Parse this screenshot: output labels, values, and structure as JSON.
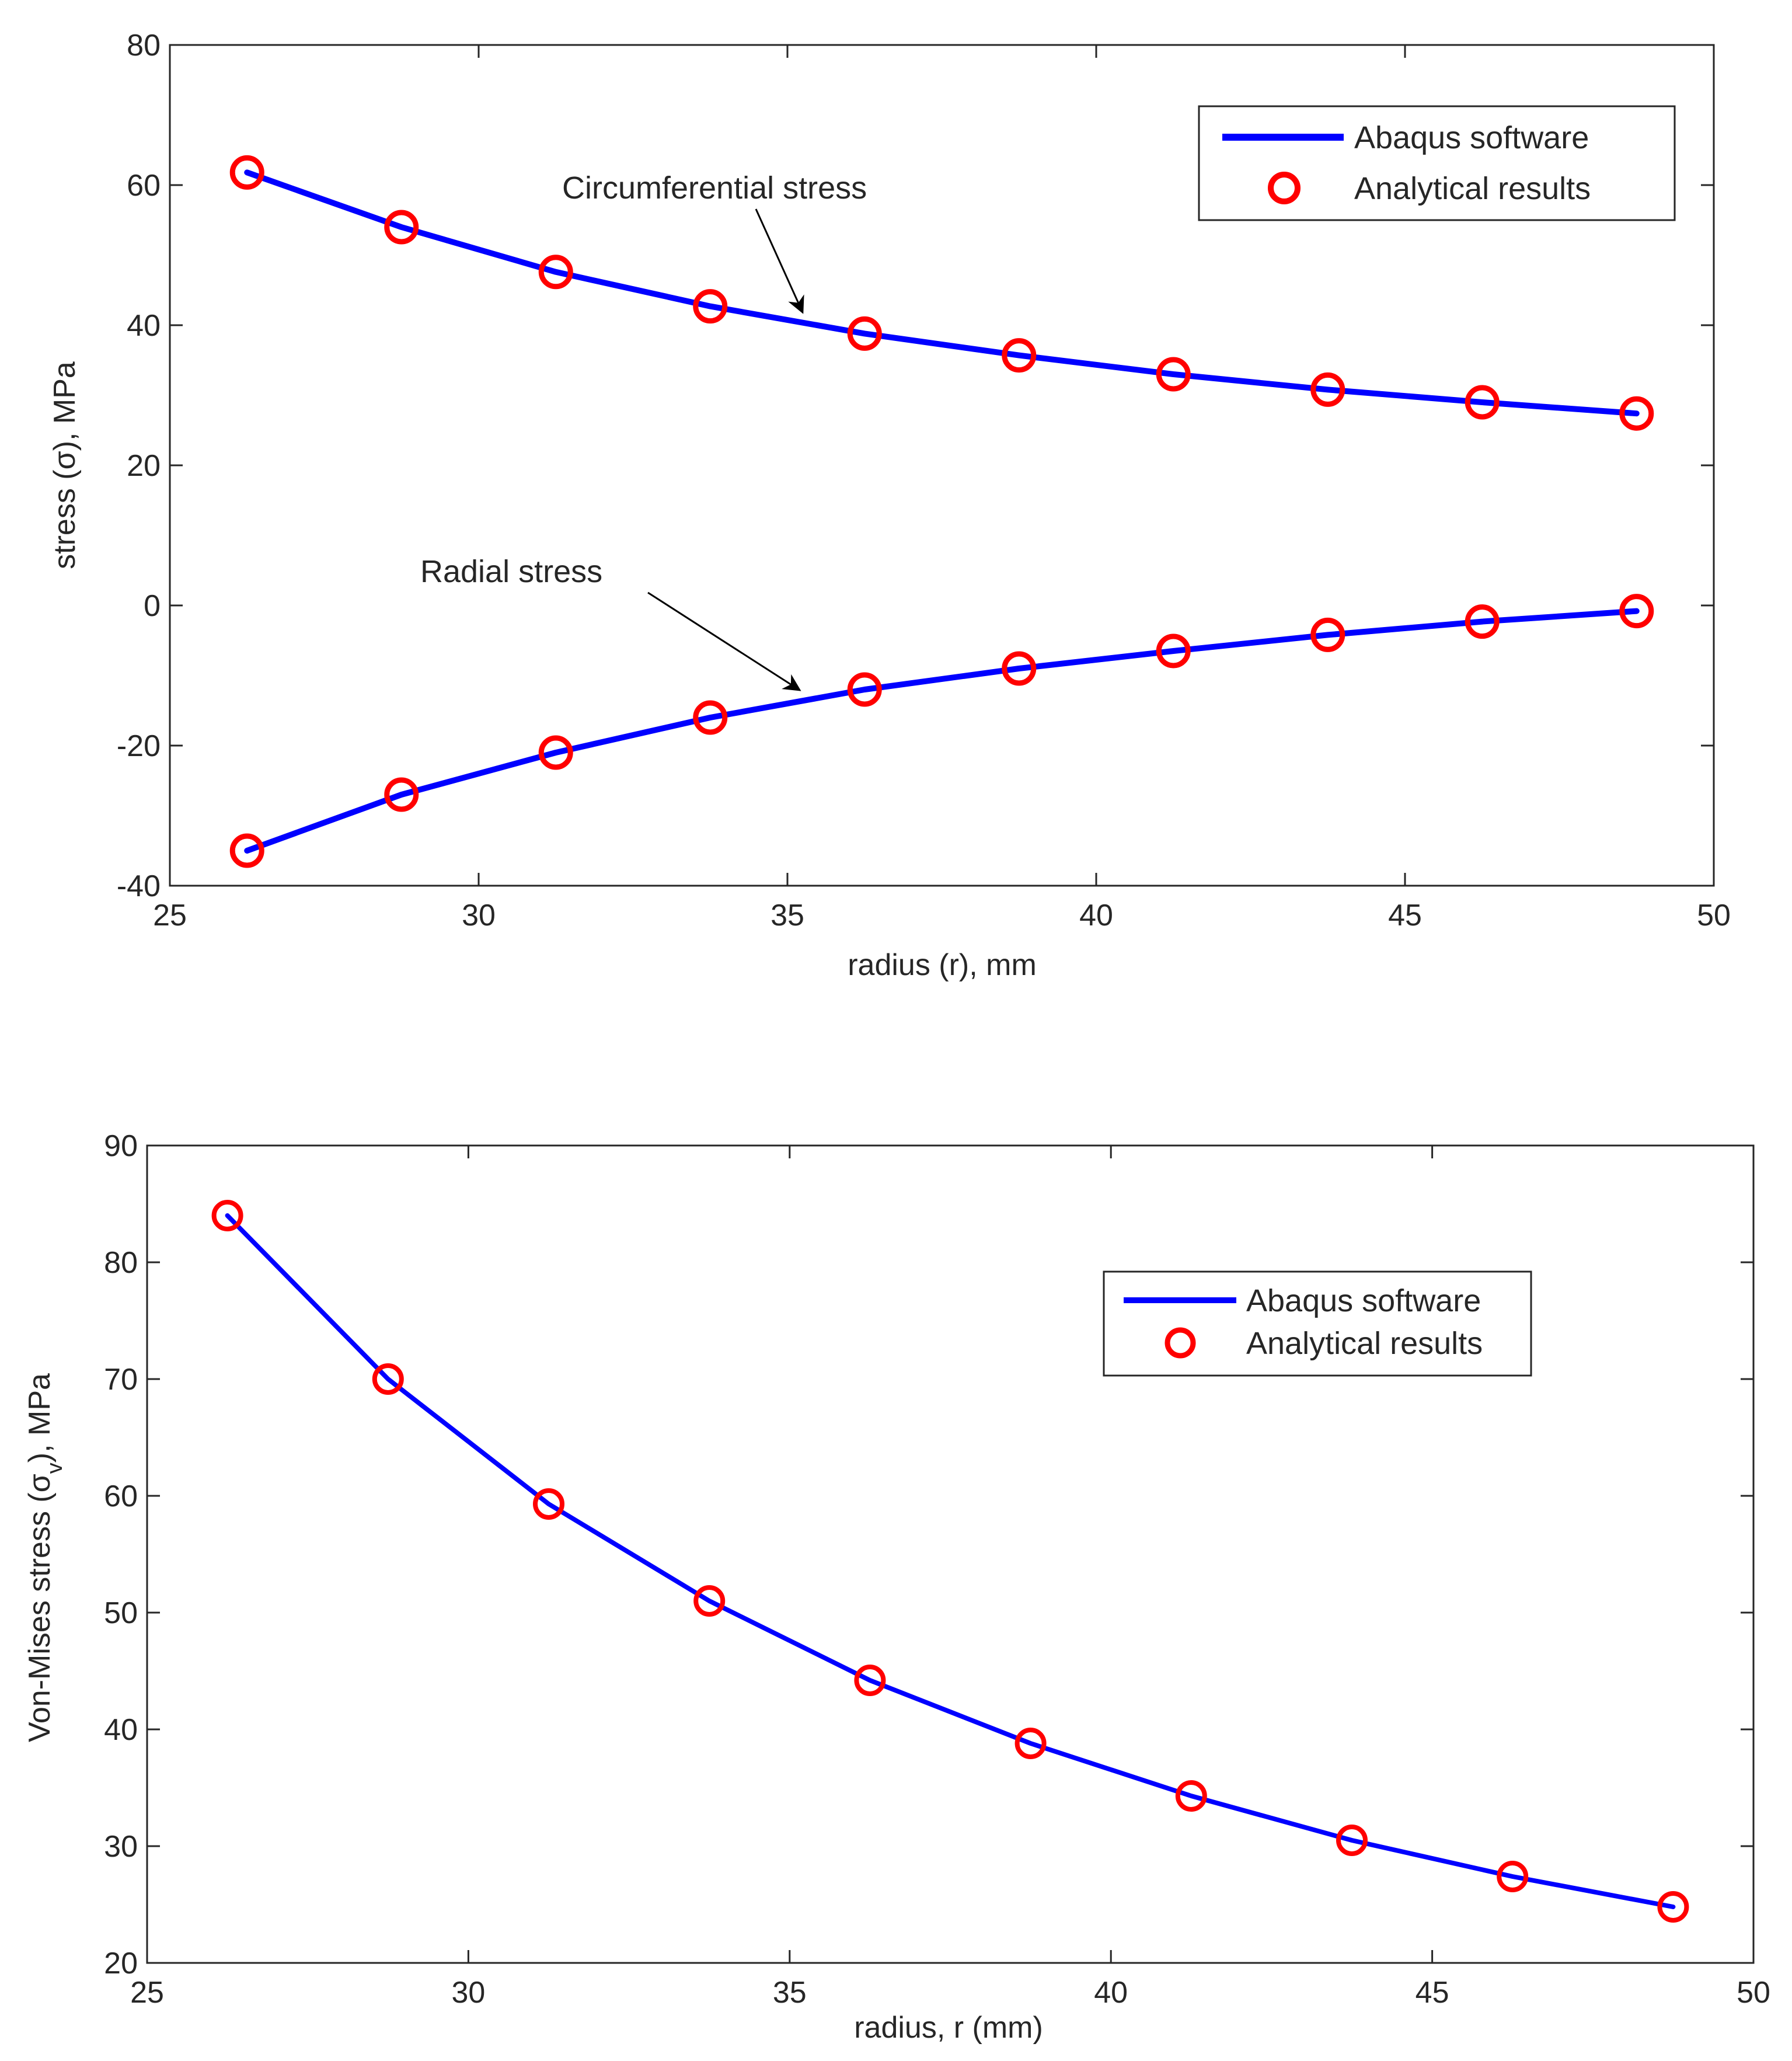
{
  "colors": {
    "line": "#0000ff",
    "marker": "#ff0000",
    "axis": "#262626",
    "background": "#ffffff"
  },
  "chart_data": [
    {
      "type": "line",
      "title": "",
      "xlabel": "radius (r), mm",
      "ylabel": "stress (σ), MPa",
      "xlim": [
        25,
        50
      ],
      "ylim": [
        -40,
        80
      ],
      "xticks": [
        25,
        30,
        35,
        40,
        45,
        50
      ],
      "yticks": [
        -40,
        -20,
        0,
        20,
        40,
        60,
        80
      ],
      "grid": false,
      "legend_position": "top-right",
      "legend": [
        "Abaqus software",
        "Analytical results"
      ],
      "x": [
        26.25,
        28.75,
        31.25,
        33.75,
        36.25,
        38.75,
        41.25,
        43.75,
        46.25,
        48.75
      ],
      "series": [
        {
          "name": "Circumferential stress",
          "values": [
            61.8,
            54.0,
            47.6,
            42.7,
            38.8,
            35.7,
            33.0,
            30.8,
            29.0,
            27.4
          ]
        },
        {
          "name": "Radial stress",
          "values": [
            -35.0,
            -27.0,
            -21.0,
            -16.0,
            -12.0,
            -9.0,
            -6.5,
            -4.2,
            -2.3,
            -0.8
          ]
        }
      ],
      "annotations": [
        {
          "text": "Circumferential stress",
          "points_to_series": "Circumferential stress"
        },
        {
          "text": "Radial stress",
          "points_to_series": "Radial stress"
        }
      ]
    },
    {
      "type": "line",
      "title": "",
      "xlabel": "radius, r (mm)",
      "ylabel": "Von-Mises stress (σ_v), MPa",
      "xlim": [
        25,
        50
      ],
      "ylim": [
        20,
        90
      ],
      "xticks": [
        25,
        30,
        35,
        40,
        45,
        50
      ],
      "yticks": [
        20,
        30,
        40,
        50,
        60,
        70,
        80,
        90
      ],
      "grid": false,
      "legend_position": "top-right",
      "legend": [
        "Abaqus software",
        "Analytical results"
      ],
      "x": [
        26.25,
        28.75,
        31.25,
        33.75,
        36.25,
        38.75,
        41.25,
        43.75,
        46.25,
        48.75
      ],
      "series": [
        {
          "name": "Von-Mises stress",
          "values": [
            84.0,
            70.0,
            59.3,
            51.0,
            44.2,
            38.8,
            34.3,
            30.5,
            27.4,
            24.8
          ]
        }
      ]
    }
  ],
  "plot1": {
    "ylabel_prefix": "stress (",
    "ylabel_sigma": "σ",
    "ylabel_suffix": "), MPa",
    "xlabel": "radius (r), mm",
    "legend_line": "Abaqus software",
    "legend_marker": "Analytical results",
    "annot_circ": "Circumferential stress",
    "annot_radial": "Radial stress"
  },
  "plot2": {
    "ylabel_prefix": "Von-Mises stress (",
    "ylabel_sigma": "σ",
    "ylabel_sub": "v",
    "ylabel_suffix": "), MPa",
    "xlabel": "radius, r (mm)",
    "legend_line": "Abaqus software",
    "legend_marker": "Analytical results"
  }
}
